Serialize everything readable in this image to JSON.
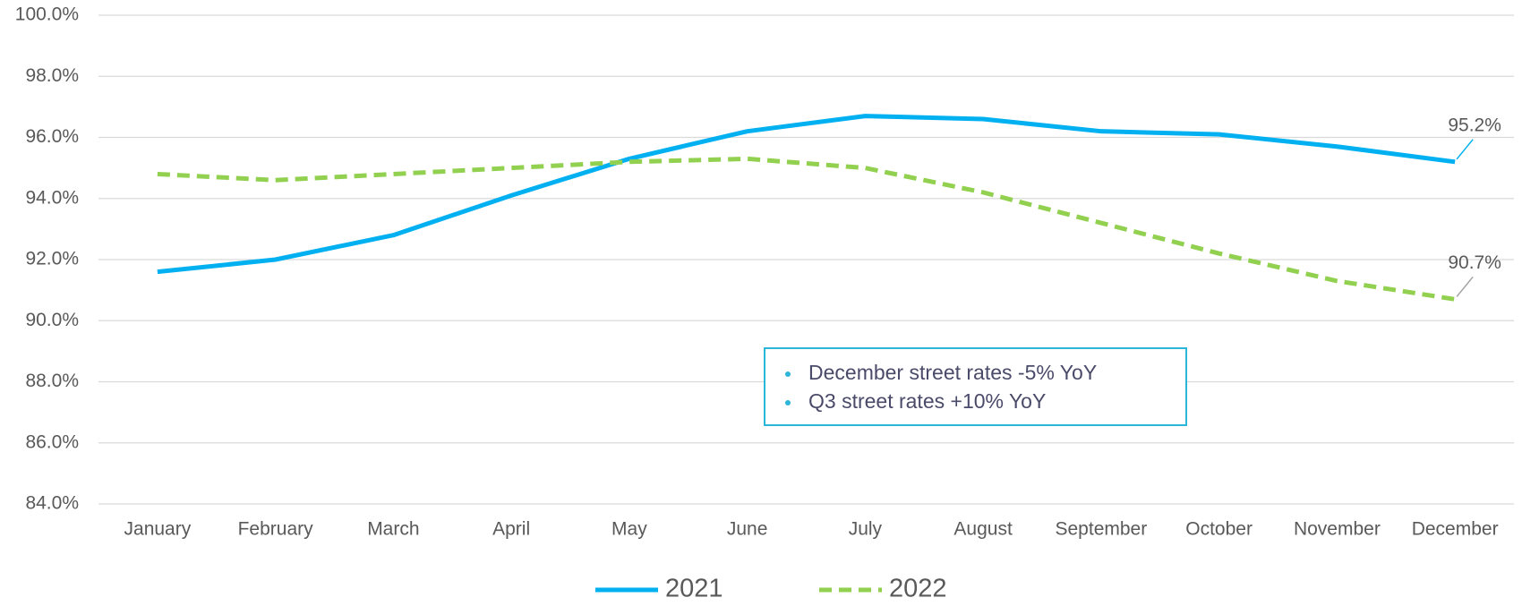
{
  "chart_data": {
    "type": "line",
    "categories": [
      "January",
      "February",
      "March",
      "April",
      "May",
      "June",
      "July",
      "August",
      "September",
      "October",
      "November",
      "December"
    ],
    "series": [
      {
        "name": "2021",
        "color": "#00b0f0",
        "values": [
          91.6,
          92.0,
          92.8,
          94.1,
          95.3,
          96.2,
          96.7,
          96.6,
          96.2,
          96.1,
          95.7,
          95.2
        ],
        "value_labels": [
          null,
          null,
          null,
          null,
          null,
          null,
          null,
          null,
          null,
          null,
          null,
          "95.2%"
        ]
      },
      {
        "name": "2022",
        "color": "#92d050",
        "dashed": true,
        "values": [
          94.8,
          94.6,
          94.8,
          95.0,
          95.2,
          95.3,
          95.0,
          94.2,
          93.2,
          92.2,
          91.3,
          90.7
        ],
        "value_labels": [
          null,
          null,
          null,
          null,
          null,
          null,
          null,
          null,
          null,
          null,
          null,
          "90.7%"
        ]
      }
    ],
    "ylim": [
      84,
      100
    ],
    "yticks": [
      {
        "value": 84,
        "label": "84.0%"
      },
      {
        "value": 86,
        "label": "86.0%"
      },
      {
        "value": 88,
        "label": "88.0%"
      },
      {
        "value": 90,
        "label": "90.0%"
      },
      {
        "value": 92,
        "label": "92.0%"
      },
      {
        "value": 94,
        "label": "94.0%"
      },
      {
        "value": 96,
        "label": "96.0%"
      },
      {
        "value": 98,
        "label": "98.0%"
      },
      {
        "value": 100,
        "label": "100.0%"
      }
    ],
    "grid": true,
    "legend": "bottom",
    "annotations": [
      "December street rates -5% YoY",
      "Q3 street rates +10% YoY"
    ]
  }
}
